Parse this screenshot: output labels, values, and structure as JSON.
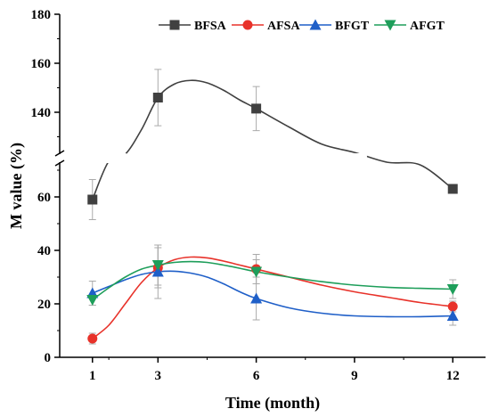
{
  "chart_data": {
    "type": "line",
    "title": "",
    "xlabel": "Time (month)",
    "ylabel": "M value (%)",
    "x": [
      1,
      3,
      6,
      9,
      12
    ],
    "x_ticks": [
      "1",
      "3",
      "6",
      "9",
      "12"
    ],
    "xlim": [
      0,
      13
    ],
    "y_axis_break": true,
    "y_lower_range": [
      0,
      72
    ],
    "y_upper_range": [
      124,
      180
    ],
    "y_lower_ticks": [
      "0",
      "20",
      "40",
      "60"
    ],
    "y_upper_ticks": [
      "140",
      "160",
      "180"
    ],
    "legend_position": "top",
    "grid": false,
    "series": [
      {
        "name": "BFSA",
        "color": "#404040",
        "marker": "square",
        "x": [
          1,
          3,
          6,
          12
        ],
        "values": [
          59,
          146,
          141.5,
          63
        ],
        "errors": [
          7.5,
          11.5,
          9,
          1
        ],
        "curve": [
          [
            1,
            59
          ],
          [
            1.5,
            86
          ],
          [
            2,
            113
          ],
          [
            2.5,
            133
          ],
          [
            3,
            146
          ],
          [
            3.5,
            151.5
          ],
          [
            4,
            153
          ],
          [
            4.5,
            152
          ],
          [
            5,
            149
          ],
          [
            5.5,
            145
          ],
          [
            6,
            141.5
          ],
          [
            7,
            134
          ],
          [
            8,
            127
          ],
          [
            9,
            120
          ],
          [
            10,
            82
          ],
          [
            11,
            72
          ],
          [
            12,
            63
          ]
        ]
      },
      {
        "name": "AFSA",
        "color": "#e8322a",
        "marker": "circle",
        "x": [
          1,
          3,
          6,
          12
        ],
        "values": [
          7,
          33.5,
          33,
          19
        ],
        "errors": [
          2,
          7.5,
          5.5,
          2
        ],
        "curve": [
          [
            1,
            7
          ],
          [
            1.5,
            12
          ],
          [
            2,
            20
          ],
          [
            2.5,
            28
          ],
          [
            3,
            33.5
          ],
          [
            3.5,
            36.5
          ],
          [
            4,
            37.5
          ],
          [
            4.5,
            37.2
          ],
          [
            5,
            36
          ],
          [
            5.5,
            34.5
          ],
          [
            6,
            33
          ],
          [
            7,
            30
          ],
          [
            8,
            27
          ],
          [
            9,
            24.5
          ],
          [
            10,
            22.5
          ],
          [
            11,
            20.5
          ],
          [
            12,
            19
          ]
        ]
      },
      {
        "name": "BFGT",
        "color": "#1f5fc8",
        "marker": "triangle-up",
        "x": [
          1,
          3,
          6,
          12
        ],
        "values": [
          24,
          32,
          22,
          15.5
        ],
        "errors": [
          4.5,
          10,
          8,
          3.5
        ],
        "curve": [
          [
            1,
            24
          ],
          [
            1.5,
            26.5
          ],
          [
            2,
            29
          ],
          [
            2.5,
            31
          ],
          [
            3,
            32
          ],
          [
            3.5,
            32.2
          ],
          [
            4,
            31.5
          ],
          [
            4.5,
            30
          ],
          [
            5,
            27.5
          ],
          [
            5.5,
            24.5
          ],
          [
            6,
            22
          ],
          [
            7,
            18.5
          ],
          [
            8,
            16.5
          ],
          [
            9,
            15.5
          ],
          [
            10,
            15.2
          ],
          [
            11,
            15.2
          ],
          [
            12,
            15.5
          ]
        ]
      },
      {
        "name": "AFGT",
        "color": "#1e9e5a",
        "marker": "triangle-down",
        "x": [
          1,
          3,
          6,
          12
        ],
        "values": [
          21.5,
          34.5,
          32,
          25.5
        ],
        "errors": [
          2,
          7.5,
          4.5,
          3.5
        ],
        "curve": [
          [
            1,
            21.5
          ],
          [
            1.5,
            26
          ],
          [
            2,
            30
          ],
          [
            2.5,
            33
          ],
          [
            3,
            34.5
          ],
          [
            3.5,
            35.5
          ],
          [
            4,
            35.8
          ],
          [
            4.5,
            35.5
          ],
          [
            5,
            34.5
          ],
          [
            5.5,
            33.3
          ],
          [
            6,
            32
          ],
          [
            7,
            30
          ],
          [
            8,
            28.3
          ],
          [
            9,
            27
          ],
          [
            10,
            26.2
          ],
          [
            11,
            25.8
          ],
          [
            12,
            25.5
          ]
        ]
      }
    ]
  }
}
